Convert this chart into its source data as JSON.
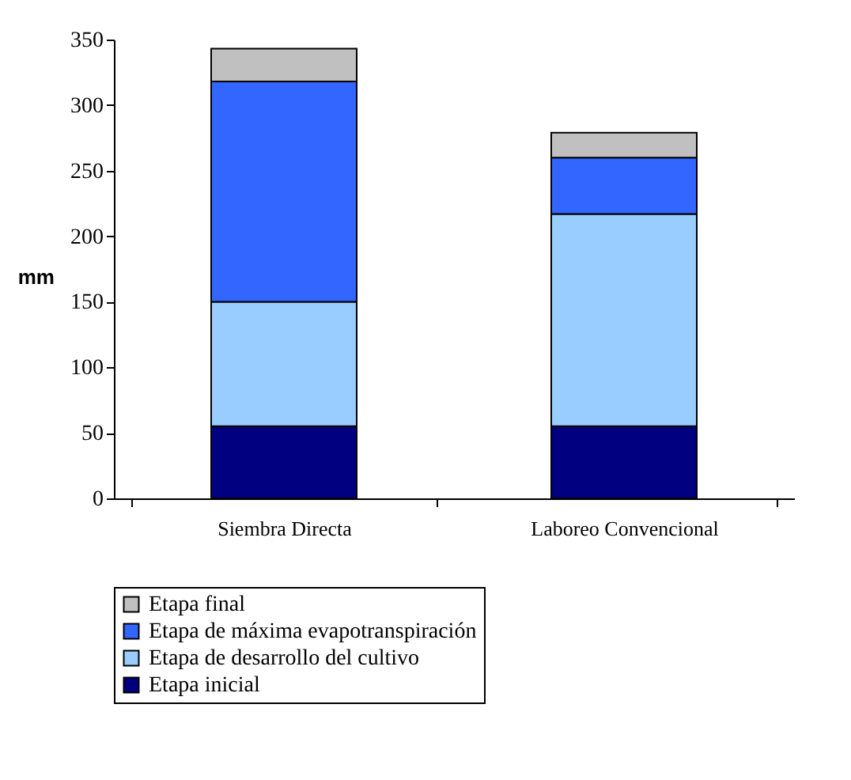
{
  "chart_data": {
    "type": "bar",
    "stacked": true,
    "ylabel": "mm",
    "categories": [
      "Siembra Directa",
      "Laboreo Convencional"
    ],
    "series": [
      {
        "name": "Etapa inicial",
        "color": "#000080",
        "values": [
          55,
          55
        ]
      },
      {
        "name": "Etapa de desarrollo del cultivo",
        "color": "#99ccff",
        "values": [
          95,
          162
        ]
      },
      {
        "name": "Etapa de máxima evapotranspiración",
        "color": "#3366ff",
        "values": [
          168,
          43
        ]
      },
      {
        "name": "Etapa final",
        "color": "#c0c0c0",
        "values": [
          25,
          19
        ]
      }
    ],
    "ylim": [
      0,
      350
    ],
    "yticks": [
      0,
      50,
      100,
      150,
      200,
      250,
      300,
      350
    ],
    "legend": "bottom",
    "grid": false
  }
}
